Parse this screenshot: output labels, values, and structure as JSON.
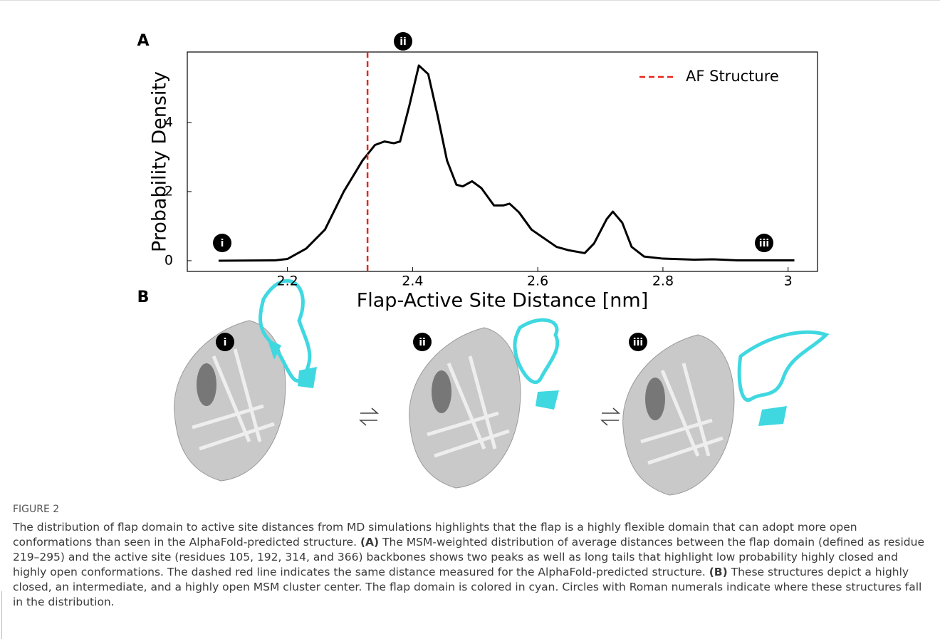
{
  "panels": {
    "a": "A",
    "b": "B"
  },
  "chart_data": {
    "type": "line",
    "x": [
      2.09,
      2.18,
      2.2,
      2.23,
      2.26,
      2.29,
      2.32,
      2.34,
      2.355,
      2.37,
      2.38,
      2.395,
      2.41,
      2.425,
      2.44,
      2.455,
      2.47,
      2.48,
      2.495,
      2.51,
      2.53,
      2.545,
      2.555,
      2.57,
      2.59,
      2.61,
      2.63,
      2.65,
      2.675,
      2.69,
      2.71,
      2.72,
      2.735,
      2.75,
      2.77,
      2.8,
      2.85,
      2.88,
      2.92,
      3.01
    ],
    "series": [
      {
        "name": null,
        "color": "#000000",
        "values": [
          0,
          0.01,
          0.05,
          0.35,
          0.9,
          2.0,
          2.9,
          3.35,
          3.45,
          3.4,
          3.45,
          4.5,
          5.65,
          5.4,
          4.2,
          2.9,
          2.2,
          2.15,
          2.3,
          2.1,
          1.6,
          1.6,
          1.65,
          1.4,
          0.9,
          0.65,
          0.4,
          0.3,
          0.22,
          0.5,
          1.2,
          1.42,
          1.1,
          0.4,
          0.12,
          0.06,
          0.03,
          0.04,
          0.01,
          0.01
        ]
      }
    ],
    "reference_line": {
      "name": "AF Structure",
      "x": 2.328,
      "color": "#e8251c"
    },
    "xlabel": "Flap-Active Site Distance [nm]",
    "ylabel": "Probability Density",
    "xlim": [
      2.04,
      3.047
    ],
    "ylim": [
      -0.31,
      6.04
    ],
    "xticks": [
      2.2,
      2.4,
      2.6,
      2.8,
      3.0
    ],
    "yticks": [
      0,
      2,
      4
    ],
    "annotations": [
      "i",
      "ii",
      "iii"
    ],
    "legend": "upper right"
  },
  "structures": [
    "i",
    "ii",
    "iii"
  ],
  "caption": {
    "label": "FIGURE 2",
    "parts": [
      "The distribution of flap domain to active site distances from MD simulations highlights that the flap is a highly flexible domain that can adopt more open conformations than seen in the AlphaFold-predicted structure. ",
      "(A)",
      " The MSM-weighted distribution of average distances between the flap domain (defined as residue 219–295) and the active site (residues 105, 192, 314, and 366) backbones shows two peaks as well as long tails that highlight low probability highly closed and highly open conformations. The dashed red line indicates the same distance measured for the AlphaFold-predicted structure. ",
      "(B)",
      " These structures depict a highly closed, an intermediate, and a highly open MSM cluster center. The flap domain is colored in cyan. Circles with Roman numerals indicate where these structures fall in the distribution."
    ]
  }
}
